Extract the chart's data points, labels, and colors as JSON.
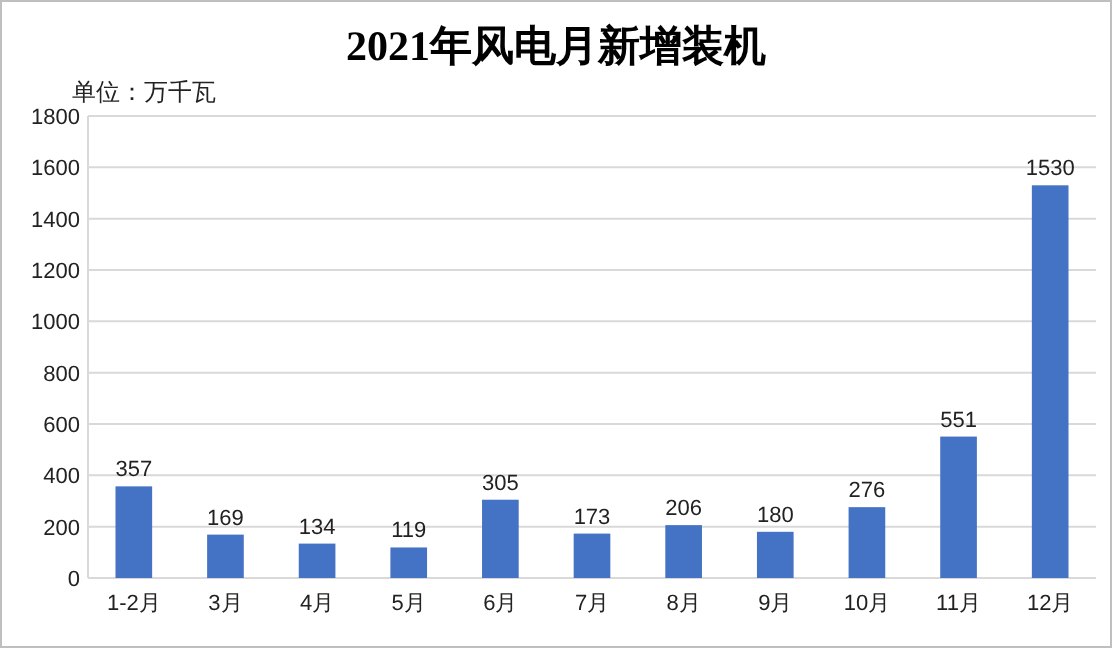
{
  "chart_data": {
    "type": "bar",
    "title": "2021年风电月新增装机",
    "ylabel": "单位：万千瓦",
    "categories": [
      "1-2月",
      "3月",
      "4月",
      "5月",
      "6月",
      "7月",
      "8月",
      "9月",
      "10月",
      "11月",
      "12月"
    ],
    "values": [
      357,
      169,
      134,
      119,
      305,
      173,
      206,
      180,
      276,
      551,
      1530
    ],
    "color": "#4472c4",
    "ylim": [
      0,
      1800
    ],
    "yticks": [
      0,
      200,
      400,
      600,
      800,
      1000,
      1200,
      1400,
      1600,
      1800
    ],
    "grid": "y",
    "data_labels": true
  }
}
